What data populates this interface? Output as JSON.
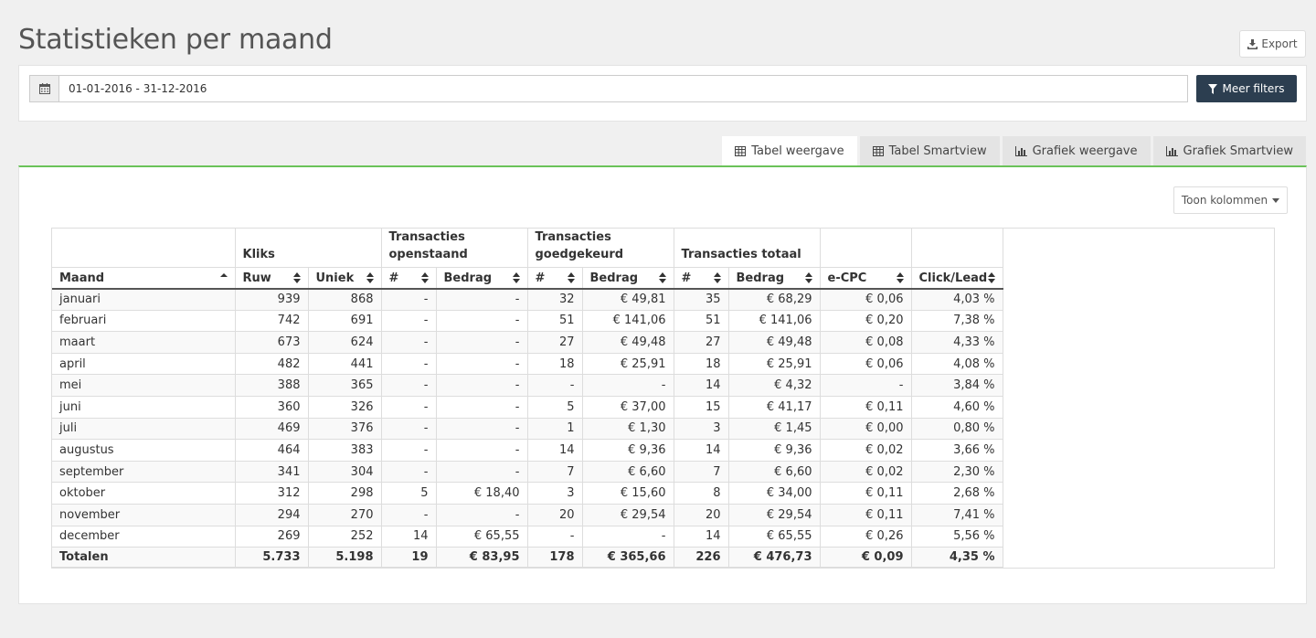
{
  "page": {
    "title": "Statistieken per maand",
    "export_label": "Export"
  },
  "filters": {
    "date_range": "01-01-2016 - 31-12-2016",
    "more_filters_label": "Meer filters"
  },
  "tabs": [
    {
      "label": "Tabel weergave",
      "icon": "table-icon",
      "active": true
    },
    {
      "label": "Tabel Smartview",
      "icon": "table-icon",
      "active": false
    },
    {
      "label": "Grafiek weergave",
      "icon": "bar-chart-icon",
      "active": false
    },
    {
      "label": "Grafiek Smartview",
      "icon": "bar-chart-icon",
      "active": false
    }
  ],
  "table": {
    "toggle_columns_label": "Toon kolommen",
    "group_headers": [
      "",
      "Kliks",
      "Transacties openstaand",
      "Transacties goedgekeurd",
      "Transacties totaal",
      "",
      ""
    ],
    "columns": [
      "Maand",
      "Ruw",
      "Uniek",
      "#",
      "Bedrag",
      "#",
      "Bedrag",
      "#",
      "Bedrag",
      "e-CPC",
      "Click/Lead"
    ],
    "rows": [
      [
        "januari",
        "939",
        "868",
        "-",
        "-",
        "32",
        "€ 49,81",
        "35",
        "€ 68,29",
        "€ 0,06",
        "4,03 %"
      ],
      [
        "februari",
        "742",
        "691",
        "-",
        "-",
        "51",
        "€ 141,06",
        "51",
        "€ 141,06",
        "€ 0,20",
        "7,38 %"
      ],
      [
        "maart",
        "673",
        "624",
        "-",
        "-",
        "27",
        "€ 49,48",
        "27",
        "€ 49,48",
        "€ 0,08",
        "4,33 %"
      ],
      [
        "april",
        "482",
        "441",
        "-",
        "-",
        "18",
        "€ 25,91",
        "18",
        "€ 25,91",
        "€ 0,06",
        "4,08 %"
      ],
      [
        "mei",
        "388",
        "365",
        "-",
        "-",
        "-",
        "-",
        "14",
        "€ 4,32",
        "-",
        "3,84 %"
      ],
      [
        "juni",
        "360",
        "326",
        "-",
        "-",
        "5",
        "€ 37,00",
        "15",
        "€ 41,17",
        "€ 0,11",
        "4,60 %"
      ],
      [
        "juli",
        "469",
        "376",
        "-",
        "-",
        "1",
        "€ 1,30",
        "3",
        "€ 1,45",
        "€ 0,00",
        "0,80 %"
      ],
      [
        "augustus",
        "464",
        "383",
        "-",
        "-",
        "14",
        "€ 9,36",
        "14",
        "€ 9,36",
        "€ 0,02",
        "3,66 %"
      ],
      [
        "september",
        "341",
        "304",
        "-",
        "-",
        "7",
        "€ 6,60",
        "7",
        "€ 6,60",
        "€ 0,02",
        "2,30 %"
      ],
      [
        "oktober",
        "312",
        "298",
        "5",
        "€ 18,40",
        "3",
        "€ 15,60",
        "8",
        "€ 34,00",
        "€ 0,11",
        "2,68 %"
      ],
      [
        "november",
        "294",
        "270",
        "-",
        "-",
        "20",
        "€ 29,54",
        "20",
        "€ 29,54",
        "€ 0,11",
        "7,41 %"
      ],
      [
        "december",
        "269",
        "252",
        "14",
        "€ 65,55",
        "-",
        "-",
        "14",
        "€ 65,55",
        "€ 0,26",
        "5,56 %"
      ]
    ],
    "totals": [
      "Totalen",
      "5.733",
      "5.198",
      "19",
      "€ 83,95",
      "178",
      "€ 365,66",
      "226",
      "€ 476,73",
      "€ 0,09",
      "4,35 %"
    ]
  },
  "colors": {
    "primary_button": "#2c3e50",
    "tab_underline": "#6ac259"
  }
}
